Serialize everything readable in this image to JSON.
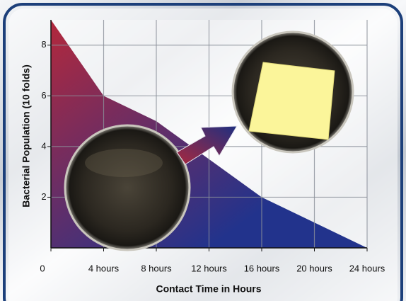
{
  "chart_data": {
    "type": "area",
    "x_label": "Contact Time in Hours",
    "y_label": "Bacterial Population (10 folds)",
    "categories": [
      "0",
      "4 hours",
      "8 hours",
      "12 hours",
      "16 hours",
      "20 hours",
      "24 hours"
    ],
    "values": [
      9,
      6,
      5,
      3.5,
      2,
      1,
      0
    ],
    "colors": [
      "#b3283c",
      "#22338c"
    ],
    "ylim": [
      0,
      9
    ],
    "yticks": [
      2,
      4,
      6,
      8
    ],
    "grid": true
  }
}
